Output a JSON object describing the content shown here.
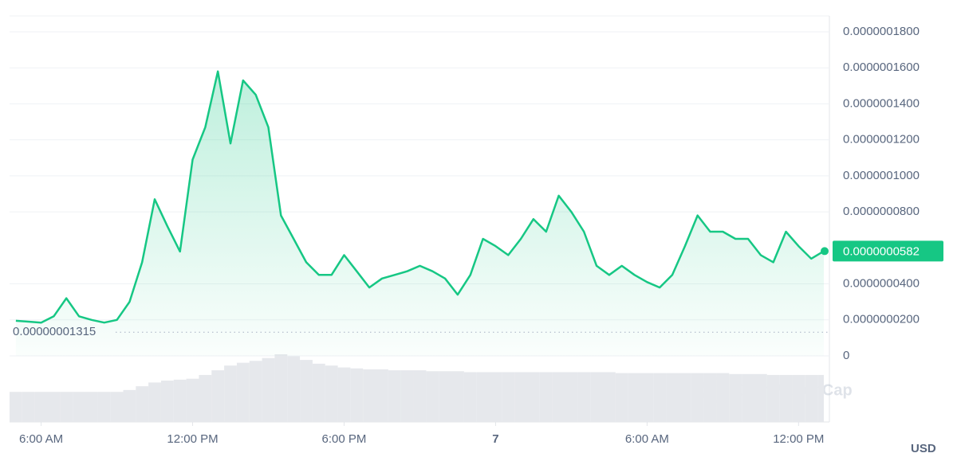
{
  "chart_data": {
    "type": "area",
    "color": "#16c784",
    "grid": true,
    "x": [
      5,
      5.5,
      6,
      6.5,
      7,
      7.5,
      8,
      8.5,
      9,
      9.5,
      10,
      10.5,
      11,
      11.5,
      12,
      12.5,
      13,
      13.5,
      14,
      14.5,
      15,
      15.5,
      16,
      16.5,
      17,
      17.5,
      18,
      18.5,
      19,
      19.5,
      20,
      20.5,
      21,
      21.5,
      22,
      22.5,
      23,
      23.5,
      24,
      24.5,
      25,
      25.5,
      26,
      26.5,
      27,
      27.5,
      28,
      28.5,
      29,
      29.5,
      30,
      30.5,
      31,
      31.5,
      32,
      32.5,
      33,
      33.5,
      34,
      34.5,
      35,
      35.5,
      36,
      36.5,
      37
    ],
    "values": [
      1.95e-08,
      1.9e-08,
      1.85e-08,
      2.2e-08,
      3.2e-08,
      2.2e-08,
      2e-08,
      1.85e-08,
      2e-08,
      3e-08,
      5.2e-08,
      8.7e-08,
      7.2e-08,
      5.8e-08,
      1.09e-07,
      1.27e-07,
      1.58e-07,
      1.18e-07,
      1.53e-07,
      1.45e-07,
      1.27e-07,
      7.8e-08,
      6.5e-08,
      5.2e-08,
      4.5e-08,
      4.5e-08,
      5.6e-08,
      4.7e-08,
      3.8e-08,
      4.3e-08,
      4.5e-08,
      4.7e-08,
      5e-08,
      4.7e-08,
      4.3e-08,
      3.4e-08,
      4.5e-08,
      6.5e-08,
      6.1e-08,
      5.6e-08,
      6.5e-08,
      7.6e-08,
      6.9e-08,
      8.9e-08,
      8e-08,
      6.9e-08,
      5e-08,
      4.5e-08,
      5e-08,
      4.5e-08,
      4.1e-08,
      3.8e-08,
      4.5e-08,
      6.1e-08,
      7.8e-08,
      6.9e-08,
      6.9e-08,
      6.5e-08,
      6.5e-08,
      5.6e-08,
      5.2e-08,
      6.9e-08,
      6.1e-08,
      5.4e-08,
      5.82e-08
    ],
    "volume": [
      32,
      32,
      32,
      32,
      32,
      32,
      32,
      32,
      32,
      34,
      38,
      42,
      44,
      45,
      46,
      50,
      55,
      60,
      63,
      65,
      68,
      72,
      70,
      66,
      62,
      60,
      58,
      57,
      56,
      56,
      55,
      55,
      55,
      54,
      54,
      54,
      53,
      53,
      53,
      53,
      53,
      53,
      53,
      53,
      53,
      53,
      53,
      53,
      52,
      52,
      52,
      52,
      52,
      52,
      52,
      52,
      52,
      51,
      51,
      51,
      50,
      50,
      50,
      50,
      50
    ],
    "xlim": [
      4.75,
      37
    ],
    "ylim": [
      0,
      1.8e-07
    ],
    "yticks": [
      0,
      {
        "value": 2e-08,
        "label": "0.0000000200"
      },
      {
        "value": 4e-08,
        "label": "0.0000000400"
      },
      {
        "value": 8e-08,
        "label": "0.0000000800"
      },
      {
        "value": 1e-07,
        "label": "0.0000001000"
      },
      {
        "value": 1.2e-07,
        "label": "0.0000001200"
      },
      {
        "value": 1.4e-07,
        "label": "0.0000001400"
      },
      {
        "value": 1.6e-07,
        "label": "0.0000001600"
      },
      {
        "value": 1.8e-07,
        "label": "0.0000001800"
      }
    ],
    "xticks": [
      {
        "value": 6,
        "label": "6:00 AM"
      },
      {
        "value": 12,
        "label": "12:00 PM"
      },
      {
        "value": 18,
        "label": "6:00 PM"
      },
      {
        "value": 24,
        "label": "7"
      },
      {
        "value": 30,
        "label": "6:00 AM"
      },
      {
        "value": 36,
        "label": "12:00 PM"
      }
    ],
    "reference": {
      "value": 1.315e-08,
      "label": "0.00000001315"
    },
    "current_price": {
      "value": 5.82e-08,
      "label": "0.0000000582"
    },
    "currency": "USD",
    "watermark": "CoinMarketCap"
  }
}
